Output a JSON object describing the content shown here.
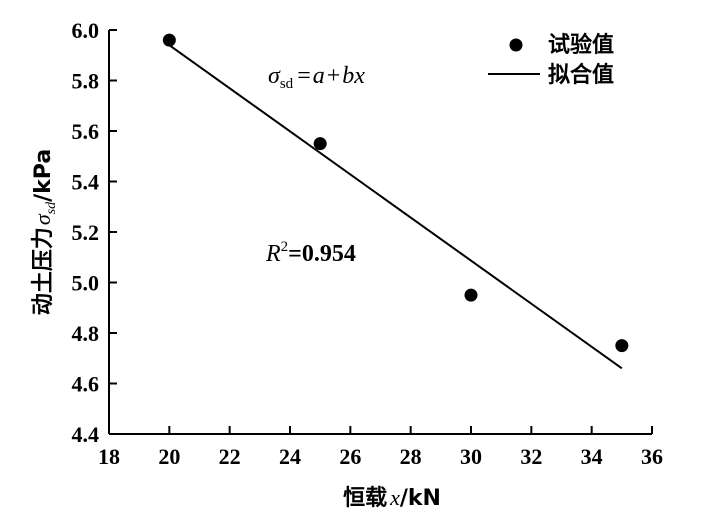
{
  "chart_data": {
    "type": "scatter",
    "xlabel": {
      "prefix": "恒载",
      "var": "x",
      "unit": "/kN"
    },
    "ylabel": {
      "prefix": "动土压力",
      "var": "σ",
      "sub": "sd",
      "unit": "/kPa"
    },
    "xlim": [
      18,
      36
    ],
    "ylim": [
      4.4,
      6.0
    ],
    "x_ticks": [
      18,
      20,
      22,
      24,
      26,
      28,
      30,
      32,
      34,
      36
    ],
    "y_ticks": [
      "4.4",
      "4.6",
      "4.8",
      "5.0",
      "5.2",
      "5.4",
      "5.6",
      "5.8",
      "6.0"
    ],
    "series": [
      {
        "name": "试验值",
        "kind": "scatter",
        "x": [
          20,
          25,
          30,
          35
        ],
        "y": [
          5.96,
          5.55,
          4.95,
          4.75
        ]
      },
      {
        "name": "拟合值",
        "kind": "line",
        "x": [
          20,
          35
        ],
        "y": [
          5.94,
          4.66
        ]
      }
    ],
    "annotations": {
      "equation": {
        "sigma": "σ",
        "sub": "sd",
        "rhs_a": "a",
        "plus": "+",
        "rhs_bx": "bx",
        "eq": "="
      },
      "r2": {
        "r": "R",
        "sup": "2",
        "value": "=0.954"
      }
    },
    "legend_position": "top-right",
    "grid": false
  }
}
